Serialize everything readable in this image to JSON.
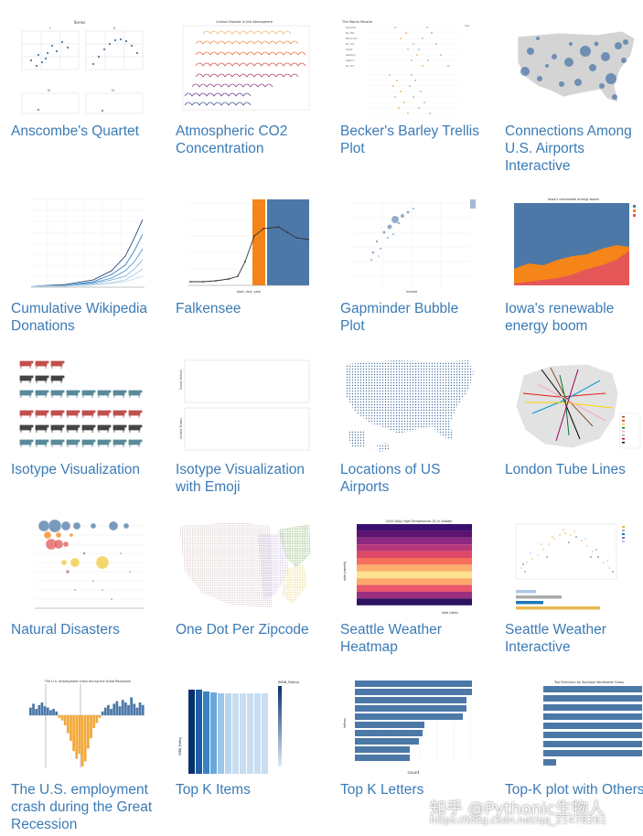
{
  "gallery": [
    {
      "title": "Anscombe's Quartet",
      "thumb": "anscombe"
    },
    {
      "title": "Atmospheric CO2 Concentration",
      "thumb": "co2"
    },
    {
      "title": "Becker's Barley Trellis Plot",
      "thumb": "barley"
    },
    {
      "title": "Connections Among U.S. Airports Interactive",
      "thumb": "airports-map"
    },
    {
      "title": "Cumulative Wikipedia Donations",
      "thumb": "wiki-lines"
    },
    {
      "title": "Falkensee",
      "thumb": "falkensee"
    },
    {
      "title": "Gapminder Bubble Plot",
      "thumb": "gapminder"
    },
    {
      "title": "Iowa's renewable energy boom",
      "thumb": "iowa-area"
    },
    {
      "title": "Isotype Visualization",
      "thumb": "isotype"
    },
    {
      "title": "Isotype Visualization with Emoji",
      "thumb": "isotype-emoji"
    },
    {
      "title": "Locations of US Airports",
      "thumb": "us-airports-dots"
    },
    {
      "title": "London Tube Lines",
      "thumb": "london-tube"
    },
    {
      "title": "Natural Disasters",
      "thumb": "disasters-bubbles"
    },
    {
      "title": "One Dot Per Zipcode",
      "thumb": "zipcode-dots"
    },
    {
      "title": "Seattle Weather Heatmap",
      "thumb": "seattle-heatmap"
    },
    {
      "title": "Seattle Weather Interactive",
      "thumb": "seattle-interactive"
    },
    {
      "title": "The U.S. employment crash during the Great Recession",
      "thumb": "employment-bars"
    },
    {
      "title": "Top K Items",
      "thumb": "topk-items"
    },
    {
      "title": "Top K Letters",
      "thumb": "topk-letters"
    },
    {
      "title": "Top-K plot with Others",
      "thumb": "topk-others"
    }
  ],
  "watermark": {
    "line1": "知乎 @Pythonic生物人",
    "line2": "https://blog.csdn.net/qq_21478261"
  },
  "thumb_text": {
    "anscombe_title": "Series",
    "co2_title": "Carbon Dioxide in the Atmosphere",
    "barley_title": "The Morris Minster",
    "iowa_title": "Iowa's renewable energy boom",
    "seattle_heatmap_title": "2010 Daily High Temperature (F) in Seattle",
    "seattle_heatmap_x": "date (date)",
    "seattle_heatmap_y": "date (month)",
    "employment_title": "The U.S. employment crash during the Great Recession",
    "topk_items_legend": "IMDB_Rating",
    "topk_items_y": "IMDB_Rating",
    "topk_letters_x": "count",
    "topk_letters_y": "letters",
    "topk_others_title": "Top Directors by Average Worldwide Gross",
    "isotype_emoji_row1": "Great Britain",
    "isotype_emoji_row2": "United States",
    "falkensee_x": "start, end, year",
    "gapminder_x": "income"
  },
  "colors": {
    "link": "#3b7bb5",
    "vega_blue": "#4c78a8",
    "vega_orange": "#f58518",
    "vega_red": "#e45756"
  }
}
